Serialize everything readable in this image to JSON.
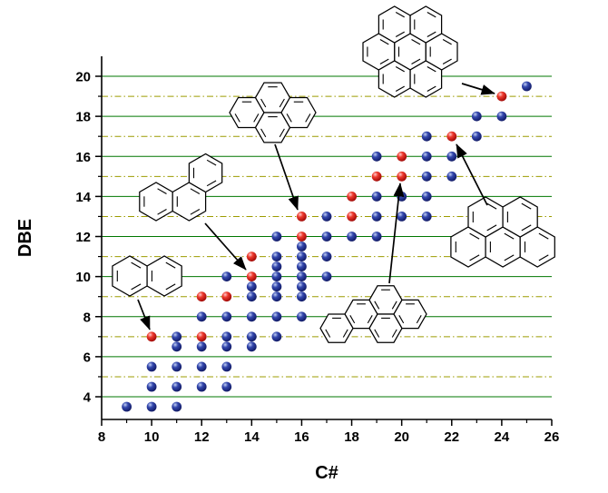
{
  "chart_data": {
    "type": "scatter",
    "title": "",
    "xlabel": "C#",
    "ylabel": "DBE",
    "xlim": [
      8,
      26
    ],
    "ylim": [
      3,
      21.1
    ],
    "x_ticks": [
      8,
      10,
      12,
      14,
      16,
      18,
      20,
      22,
      24,
      26
    ],
    "y_ticks": [
      4,
      6,
      8,
      10,
      12,
      14,
      16,
      18,
      20
    ],
    "grid": {
      "even_lines": [
        4,
        6,
        8,
        10,
        12,
        14,
        16,
        18,
        20
      ],
      "even_color": "#007700",
      "odd_lines": [
        5,
        7,
        9,
        11,
        13,
        15,
        17,
        19
      ],
      "odd_color": "#9c9c00"
    },
    "legend": "none",
    "series": [
      {
        "name": "blue",
        "label": "blue-spheres",
        "color": "#1a2f9c",
        "points": [
          [
            9,
            3.5
          ],
          [
            10,
            3.5
          ],
          [
            11,
            3.5
          ],
          [
            10,
            4.5
          ],
          [
            11,
            4.5
          ],
          [
            12,
            4.5
          ],
          [
            13,
            4.5
          ],
          [
            10,
            5.5
          ],
          [
            11,
            5.5
          ],
          [
            12,
            5.5
          ],
          [
            13,
            5.5
          ],
          [
            11,
            6.5
          ],
          [
            12,
            6.5
          ],
          [
            13,
            6.5
          ],
          [
            14,
            6.5
          ],
          [
            11,
            7
          ],
          [
            13,
            7
          ],
          [
            14,
            7
          ],
          [
            15,
            7
          ],
          [
            12,
            8
          ],
          [
            13,
            8
          ],
          [
            14,
            8
          ],
          [
            15,
            8
          ],
          [
            16,
            8
          ],
          [
            14,
            9
          ],
          [
            15,
            9
          ],
          [
            16,
            9
          ],
          [
            14,
            9.5
          ],
          [
            15,
            9.5
          ],
          [
            16,
            9.5
          ],
          [
            13,
            10
          ],
          [
            15,
            10
          ],
          [
            16,
            10
          ],
          [
            17,
            10
          ],
          [
            15,
            10.5
          ],
          [
            16,
            10.5
          ],
          [
            15,
            11
          ],
          [
            16,
            11
          ],
          [
            17,
            11
          ],
          [
            16,
            11.5
          ],
          [
            15,
            12
          ],
          [
            17,
            12
          ],
          [
            18,
            12
          ],
          [
            19,
            12
          ],
          [
            17,
            13
          ],
          [
            19,
            13
          ],
          [
            20,
            13
          ],
          [
            21,
            13
          ],
          [
            19,
            14
          ],
          [
            20,
            14
          ],
          [
            21,
            14
          ],
          [
            21,
            15
          ],
          [
            22,
            15
          ],
          [
            19,
            16
          ],
          [
            21,
            16
          ],
          [
            22,
            16
          ],
          [
            21,
            17
          ],
          [
            23,
            17
          ],
          [
            23,
            18
          ],
          [
            24,
            18
          ],
          [
            25,
            19.5
          ]
        ]
      },
      {
        "name": "red",
        "label": "red-spheres-PAH-series",
        "color": "#dd2222",
        "points": [
          [
            10,
            7
          ],
          [
            12,
            7
          ],
          [
            12,
            9
          ],
          [
            13,
            9
          ],
          [
            14,
            10
          ],
          [
            14,
            11
          ],
          [
            16,
            12
          ],
          [
            16,
            13
          ],
          [
            18,
            13
          ],
          [
            18,
            14
          ],
          [
            19,
            15
          ],
          [
            20,
            15
          ],
          [
            20,
            16
          ],
          [
            22,
            17
          ],
          [
            24,
            19
          ]
        ]
      }
    ],
    "structures": [
      {
        "name": "naphthalene",
        "orient": "pointy",
        "r": 22,
        "cx": 143,
        "cy": 304,
        "rings": [
          [
            0,
            0
          ],
          [
            1.732,
            0
          ]
        ],
        "arrow": [
          152,
          330,
          165,
          363
        ]
      },
      {
        "name": "phenanthrene",
        "orient": "pointy",
        "r": 21,
        "cx": 172,
        "cy": 222,
        "rings": [
          [
            0,
            0
          ],
          [
            1.732,
            0
          ],
          [
            2.598,
            -1.5
          ]
        ],
        "arrow": [
          226,
          246,
          271,
          297
        ]
      },
      {
        "name": "pyrene",
        "orient": "flat",
        "r": 19,
        "cx": 272,
        "cy": 124,
        "rings": [
          [
            0,
            0
          ],
          [
            1.5,
            -0.866
          ],
          [
            1.5,
            0.866
          ],
          [
            3,
            0
          ]
        ],
        "arrow": [
          303,
          159,
          328,
          231
        ]
      },
      {
        "name": "coronene",
        "orient": "pointy",
        "r": 20,
        "cx": 452,
        "cy": 57,
        "rings": [
          [
            0,
            0
          ],
          [
            1.732,
            0
          ],
          [
            -1.732,
            0
          ],
          [
            0.866,
            -1.5
          ],
          [
            -0.866,
            -1.5
          ],
          [
            0.866,
            1.5
          ],
          [
            -0.866,
            1.5
          ]
        ],
        "arrow": [
          509,
          92,
          545,
          103
        ]
      },
      {
        "name": "benzo-a-pyrene",
        "orient": "flat",
        "r": 18,
        "cx": 398,
        "cy": 346,
        "rings": [
          [
            0,
            0
          ],
          [
            1.5,
            -0.866
          ],
          [
            1.5,
            0.866
          ],
          [
            3,
            0
          ],
          [
            -1.5,
            0.866
          ]
        ],
        "arrow": [
          429,
          312,
          441,
          202
        ]
      },
      {
        "name": "benzo-ghi-perylene",
        "orient": "pointy",
        "r": 22,
        "cx": 516,
        "cy": 272,
        "rings": [
          [
            0,
            0
          ],
          [
            1.732,
            0
          ],
          [
            3.464,
            0
          ],
          [
            0.866,
            -1.5
          ],
          [
            2.598,
            -1.5
          ]
        ],
        "arrow": [
          537,
          226,
          503,
          159
        ]
      }
    ]
  }
}
